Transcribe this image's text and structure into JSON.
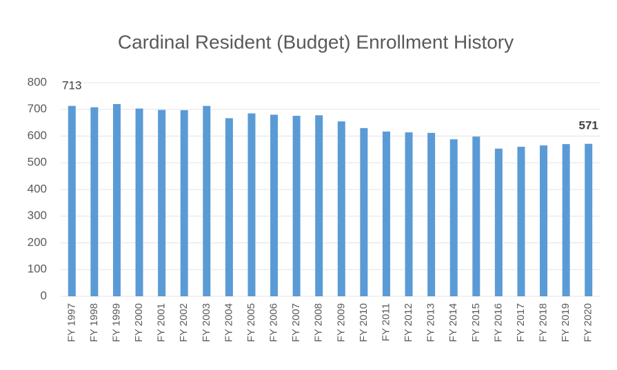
{
  "chart_data": {
    "type": "bar",
    "title": "Cardinal Resident (Budget) Enrollment History",
    "categories": [
      "FY 1997",
      "FY 1998",
      "FY 1999",
      "FY 2000",
      "FY 2001",
      "FY 2002",
      "FY 2003",
      "FY 2004",
      "FY 2005",
      "FY 2006",
      "FY 2007",
      "FY 2008",
      "FY 2009",
      "FY 2010",
      "FY 2011",
      "FY 2012",
      "FY 2013",
      "FY 2014",
      "FY 2015",
      "FY 2016",
      "FY 2017",
      "FY 2018",
      "FY 2019",
      "FY 2020"
    ],
    "values": [
      713,
      708,
      720,
      703,
      698,
      697,
      713,
      667,
      685,
      680,
      676,
      678,
      655,
      630,
      617,
      614,
      612,
      588,
      598,
      553,
      560,
      565,
      570,
      571
    ],
    "color": "#5b9bd5",
    "ylim": [
      0,
      800
    ],
    "yticks": [
      0,
      100,
      200,
      300,
      400,
      500,
      600,
      700,
      800
    ],
    "grid": true
  }
}
